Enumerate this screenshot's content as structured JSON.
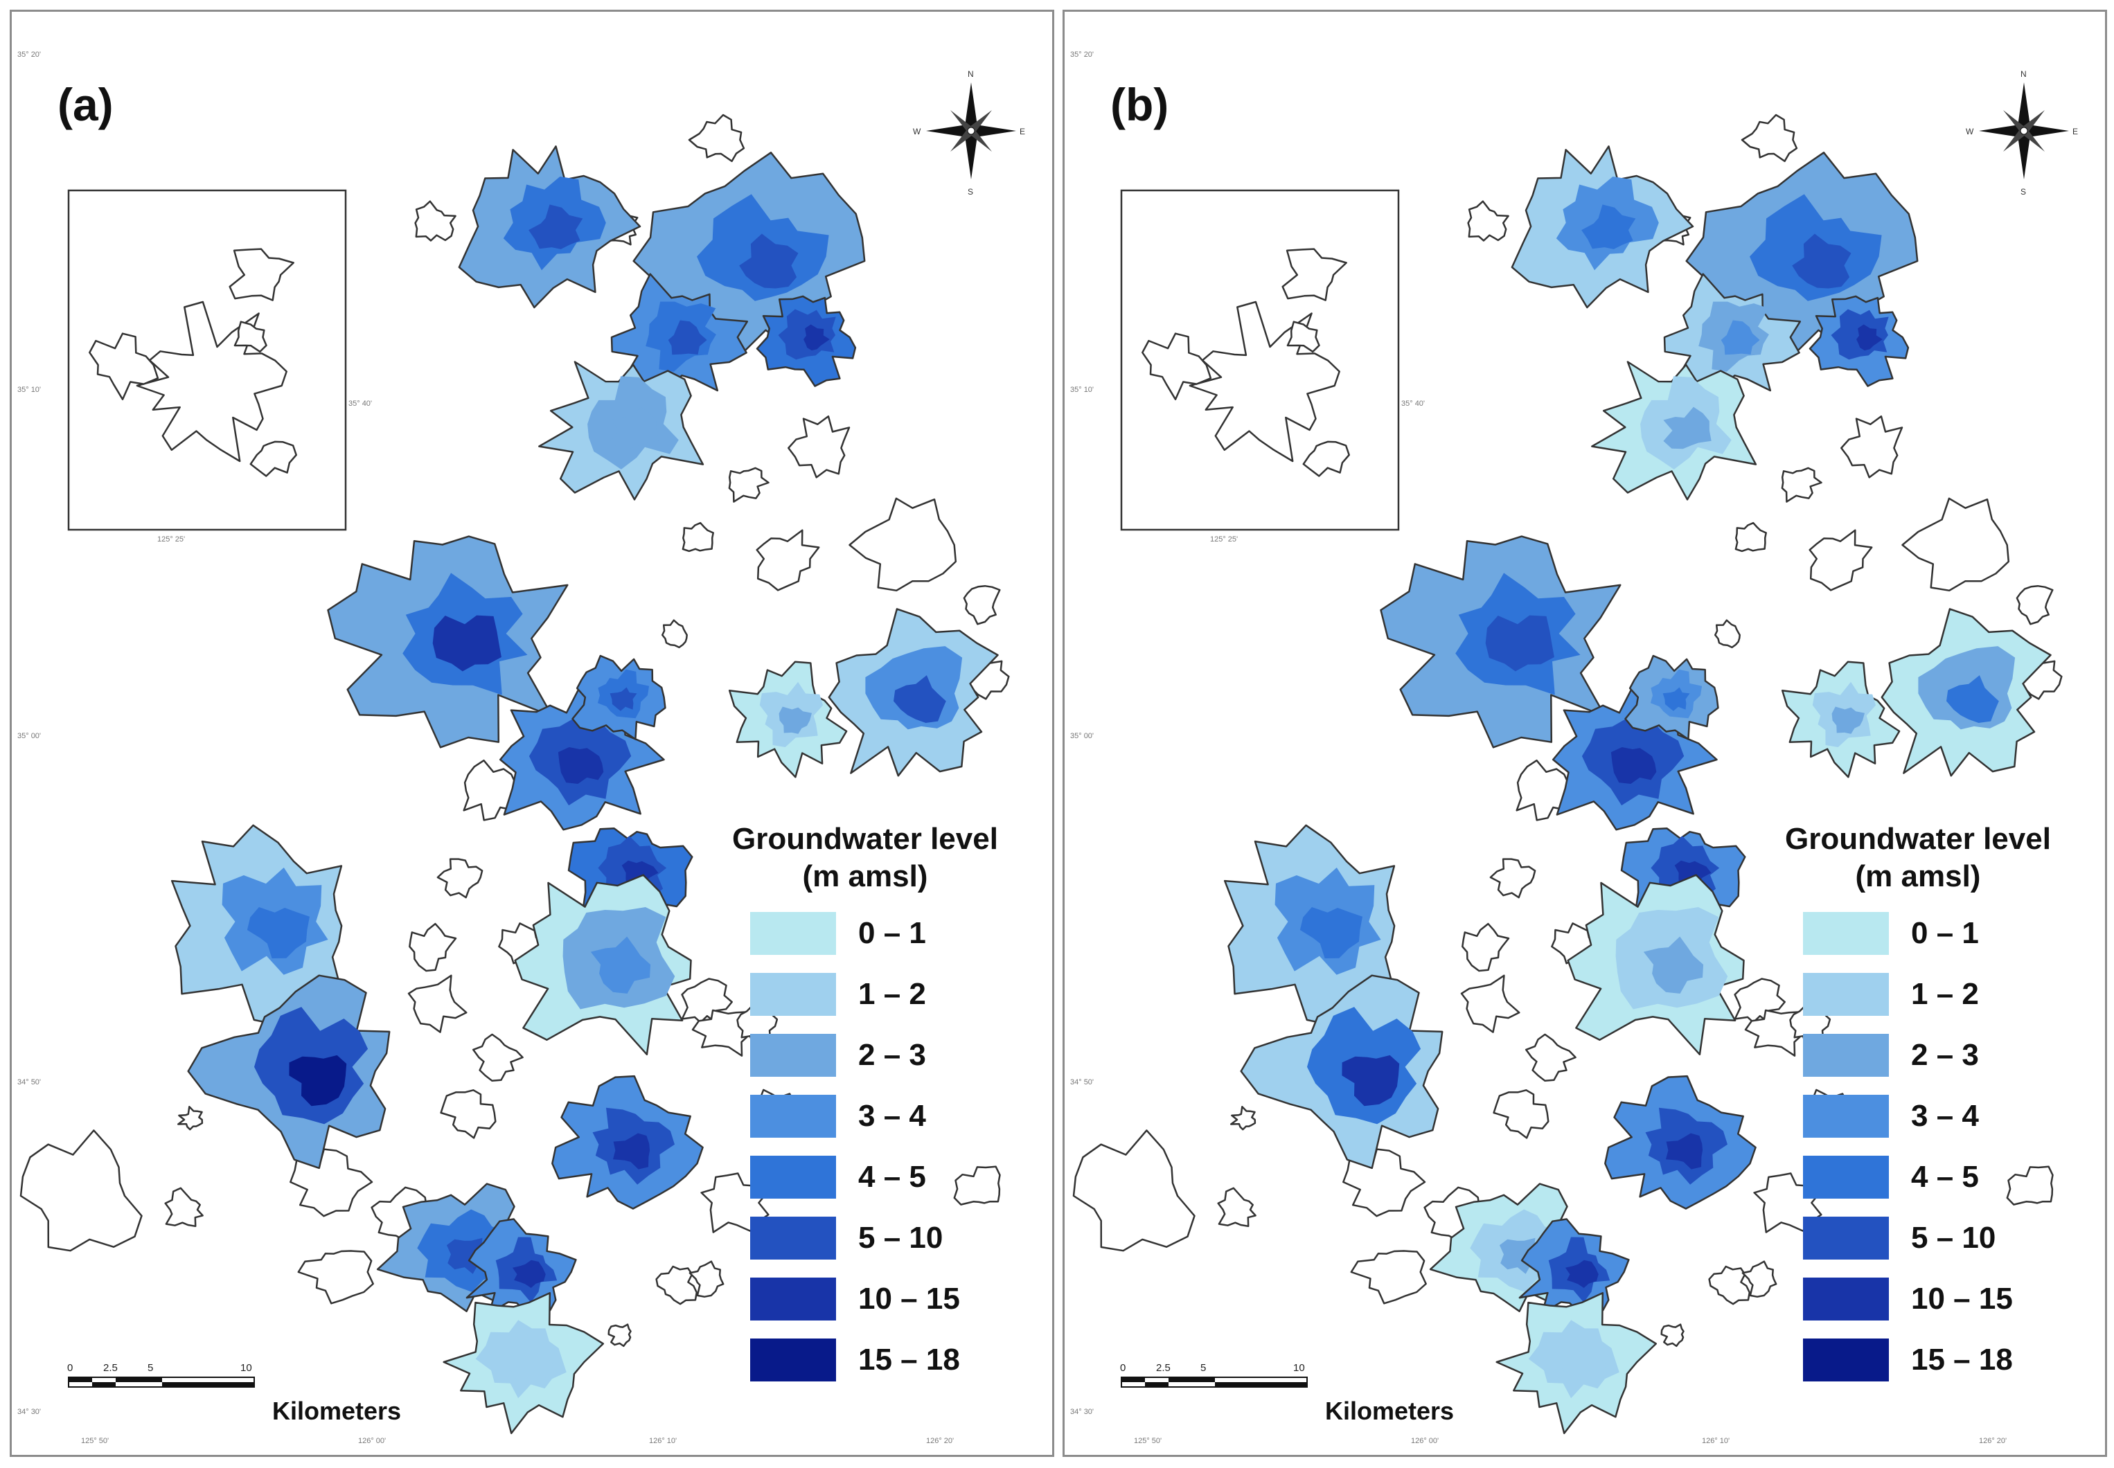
{
  "panels": [
    {
      "label": "(a)",
      "legend_title_line1": "Groundwater level",
      "legend_title_line2": "(m amsl)",
      "scale_unit": "Kilometers",
      "scale_ticks": [
        "0",
        "2.5",
        "5",
        "10"
      ]
    },
    {
      "label": "(b)",
      "legend_title_line1": "Groundwater level",
      "legend_title_line2": "(m amsl)",
      "scale_unit": "Kilometers",
      "scale_ticks": [
        "0",
        "2.5",
        "5",
        "10"
      ]
    }
  ],
  "legend_classes": [
    {
      "range": "0 – 1",
      "color": "#b8e8f0"
    },
    {
      "range": "1 – 2",
      "color": "#9fd0ee"
    },
    {
      "range": "2 – 3",
      "color": "#6fa8e0"
    },
    {
      "range": "3 – 4",
      "color": "#4c8fe0"
    },
    {
      "range": "4 – 5",
      "color": "#2f74d8"
    },
    {
      "range": "5 – 10",
      "color": "#2352c0"
    },
    {
      "range": "10 – 15",
      "color": "#1834a8"
    },
    {
      "range": "15 – 18",
      "color": "#081a8a"
    }
  ],
  "compass": {
    "icon": "north-arrow-icon",
    "n": "N",
    "s": "S",
    "e": "E",
    "w": "W"
  },
  "coordinates": {
    "lat_top": "35° 20'",
    "lat_mid1": "35° 10'",
    "lat_mid2": "35° 00'",
    "lat_mid3": "34° 50'",
    "lat_bottom": "34° 30'",
    "lon_1": "125° 50'",
    "lon_2": "126° 00'",
    "lon_3": "126° 10'",
    "lon_4": "126° 20'",
    "inset_lat": "35° 40'",
    "inset_lon": "125° 25'"
  }
}
